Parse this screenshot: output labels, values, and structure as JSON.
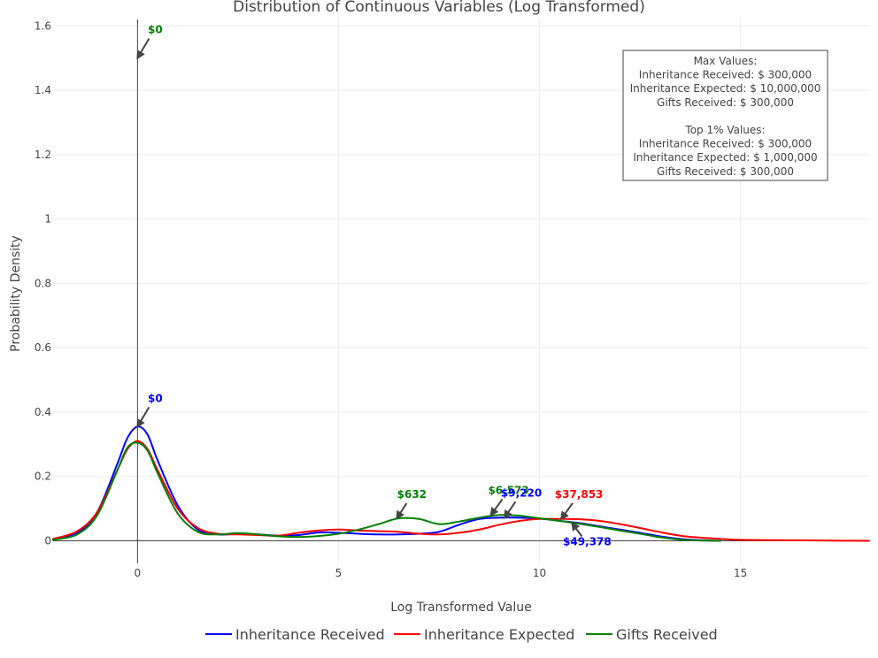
{
  "chart_data": {
    "type": "line",
    "title": "Distribution of Continuous Variables (Log Transformed)",
    "xlabel": "Log Transformed Value",
    "ylabel": "Probability Density",
    "xlim": [
      -2.1,
      18.2
    ],
    "ylim": [
      -0.07,
      1.62
    ],
    "x_ticks": [
      0,
      5,
      10,
      15
    ],
    "y_ticks": [
      0,
      0.2,
      0.4,
      0.6,
      0.8,
      1,
      1.2,
      1.4,
      1.6
    ],
    "y_tick_labels": [
      "0",
      "0.2",
      "0.4",
      "0.6",
      "0.8",
      "1",
      "1.2",
      "1.4",
      "1.6"
    ],
    "grid": true,
    "legend_position": "bottom",
    "series": [
      {
        "name": "Inheritance Received",
        "color": "#0000ff",
        "x": [
          -2.1,
          -1.5,
          -1.0,
          -0.5,
          -0.25,
          0,
          0.25,
          0.5,
          1.0,
          1.5,
          2.0,
          2.5,
          3.0,
          3.5,
          4.0,
          4.5,
          5.0,
          5.5,
          6.0,
          6.5,
          7.0,
          7.5,
          8.0,
          8.5,
          9.0,
          9.5,
          10.0,
          10.5,
          11.0,
          11.5,
          12.0,
          12.5,
          13.0,
          13.5,
          14.0,
          14.5
        ],
        "y": [
          0.004,
          0.025,
          0.09,
          0.24,
          0.32,
          0.355,
          0.33,
          0.25,
          0.11,
          0.035,
          0.02,
          0.022,
          0.02,
          0.016,
          0.018,
          0.026,
          0.025,
          0.022,
          0.02,
          0.02,
          0.022,
          0.028,
          0.05,
          0.068,
          0.072,
          0.072,
          0.069,
          0.062,
          0.055,
          0.045,
          0.035,
          0.025,
          0.014,
          0.006,
          0.002,
          0.0
        ]
      },
      {
        "name": "Inheritance Expected",
        "color": "#ff0000",
        "x": [
          -2.1,
          -1.5,
          -1.0,
          -0.5,
          -0.25,
          0,
          0.25,
          0.5,
          1.0,
          1.5,
          2.0,
          2.5,
          3.0,
          3.5,
          4.0,
          4.5,
          5.0,
          5.5,
          6.0,
          6.5,
          7.0,
          7.5,
          8.0,
          8.5,
          9.0,
          9.5,
          10.0,
          10.5,
          11.0,
          11.5,
          12.0,
          12.5,
          13.0,
          13.5,
          14.0,
          14.5,
          15.0,
          16.0,
          17.0,
          18.2
        ],
        "y": [
          0.006,
          0.03,
          0.09,
          0.22,
          0.285,
          0.31,
          0.285,
          0.22,
          0.1,
          0.04,
          0.022,
          0.02,
          0.018,
          0.016,
          0.025,
          0.032,
          0.035,
          0.032,
          0.03,
          0.028,
          0.022,
          0.02,
          0.025,
          0.035,
          0.05,
          0.062,
          0.068,
          0.068,
          0.067,
          0.062,
          0.052,
          0.04,
          0.027,
          0.016,
          0.01,
          0.006,
          0.003,
          0.002,
          0.001,
          0.0
        ]
      },
      {
        "name": "Gifts Received",
        "color": "#008000",
        "x": [
          -2.1,
          -1.5,
          -1.0,
          -0.5,
          -0.25,
          0,
          0.25,
          0.5,
          1.0,
          1.5,
          2.0,
          2.5,
          3.0,
          3.5,
          4.0,
          4.5,
          5.0,
          5.5,
          6.0,
          6.5,
          7.0,
          7.5,
          8.0,
          8.5,
          9.0,
          9.5,
          10.0,
          10.5,
          11.0,
          11.5,
          12.0,
          12.5,
          13.0,
          13.5,
          14.0,
          14.5
        ],
        "y": [
          0.003,
          0.02,
          0.08,
          0.22,
          0.29,
          0.305,
          0.28,
          0.21,
          0.085,
          0.028,
          0.02,
          0.024,
          0.02,
          0.014,
          0.012,
          0.015,
          0.022,
          0.035,
          0.052,
          0.07,
          0.068,
          0.052,
          0.06,
          0.072,
          0.08,
          0.078,
          0.07,
          0.062,
          0.053,
          0.043,
          0.032,
          0.022,
          0.011,
          0.004,
          0.001,
          0.0
        ]
      }
    ],
    "annotations": [
      {
        "text": "$0",
        "x": 0,
        "y": 1.5,
        "color": "#008000"
      },
      {
        "text": "$0",
        "x": 0,
        "y": 0.355,
        "color": "#0000ff"
      },
      {
        "text": "$632",
        "x": 6.45,
        "y": 0.07,
        "color": "#008000"
      },
      {
        "text": "$6,573",
        "x": 8.79,
        "y": 0.08,
        "color": "#008000"
      },
      {
        "text": "$9,220",
        "x": 9.13,
        "y": 0.072,
        "color": "#0000ff"
      },
      {
        "text": "$37,853",
        "x": 10.54,
        "y": 0.068,
        "color": "#ff0000"
      },
      {
        "text": "$49,378",
        "x": 10.81,
        "y": 0.055,
        "color": "#0000ff"
      }
    ],
    "info_box": [
      "Max Values:",
      "Inheritance Received: $ 300,000",
      "Inheritance Expected: $ 10,000,000",
      "Gifts Received: $ 300,000",
      "",
      "Top 1% Values:",
      "Inheritance Received: $ 300,000",
      "Inheritance Expected: $ 1,000,000",
      "Gifts Received: $ 300,000"
    ]
  }
}
